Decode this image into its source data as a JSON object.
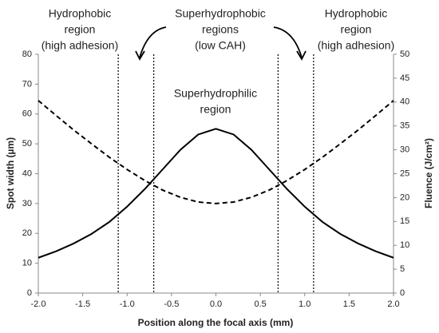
{
  "chart_data": {
    "type": "line",
    "x": [
      -2.0,
      -1.8,
      -1.6,
      -1.4,
      -1.2,
      -1.0,
      -0.8,
      -0.6,
      -0.4,
      -0.2,
      0.0,
      0.2,
      0.4,
      0.6,
      0.8,
      1.0,
      1.2,
      1.4,
      1.6,
      1.8,
      2.0
    ],
    "series": [
      {
        "color": "#000000",
        "dash": true,
        "values": [
          64.5,
          59.5,
          54.6,
          50.0,
          45.5,
          41.4,
          37.7,
          34.5,
          32.1,
          30.5,
          30.0,
          30.5,
          32.1,
          34.5,
          37.7,
          41.4,
          45.5,
          50.0,
          54.6,
          59.5,
          64.5
        ]
      },
      {
        "color": "#000000",
        "dash": false,
        "axis": "y2",
        "values": [
          7.4,
          8.75,
          10.4,
          12.4,
          14.9,
          18.1,
          21.8,
          25.9,
          30.0,
          33.2,
          34.4,
          33.2,
          30.0,
          25.9,
          21.8,
          18.1,
          14.9,
          12.4,
          10.4,
          8.75,
          7.4
        ]
      }
    ],
    "xlabel": "Position along the focal axis (mm)",
    "ylabel": "Spot width (µm)",
    "y2label": "Fluence (J/cm²)",
    "xlim": [
      -2.0,
      2.0
    ],
    "xticks": [
      {
        "value": -2.0,
        "label": "-2.0"
      },
      -1.5,
      {
        "value": -1.0,
        "label": "-1.0"
      },
      -0.5,
      {
        "value": 0.0,
        "label": "0.0"
      },
      0.5,
      {
        "value": 1.0,
        "label": "1.0"
      },
      1.5,
      {
        "value": 2.0,
        "label": "2.0"
      }
    ],
    "ylim": [
      0,
      80
    ],
    "yticks": [
      0,
      10,
      20,
      30,
      40,
      50,
      60,
      70,
      80
    ],
    "y2lim": [
      0,
      50
    ],
    "y2ticks": [
      0,
      5,
      10,
      15,
      20,
      25,
      30,
      35,
      40,
      45,
      50
    ],
    "vlines": [
      -1.1,
      -0.7,
      0.7,
      1.1
    ],
    "annotations": [
      {
        "lines": [
          "Hydrophobic",
          "region",
          "(high adhesion)"
        ]
      },
      {
        "lines": [
          "Superhydrophobic",
          "regions",
          "(low CAH)"
        ]
      },
      {
        "lines": [
          "Hydrophobic",
          "region",
          "(high adhesion)"
        ]
      },
      {
        "lines": [
          "Superhydrophilic",
          "region"
        ]
      }
    ]
  }
}
